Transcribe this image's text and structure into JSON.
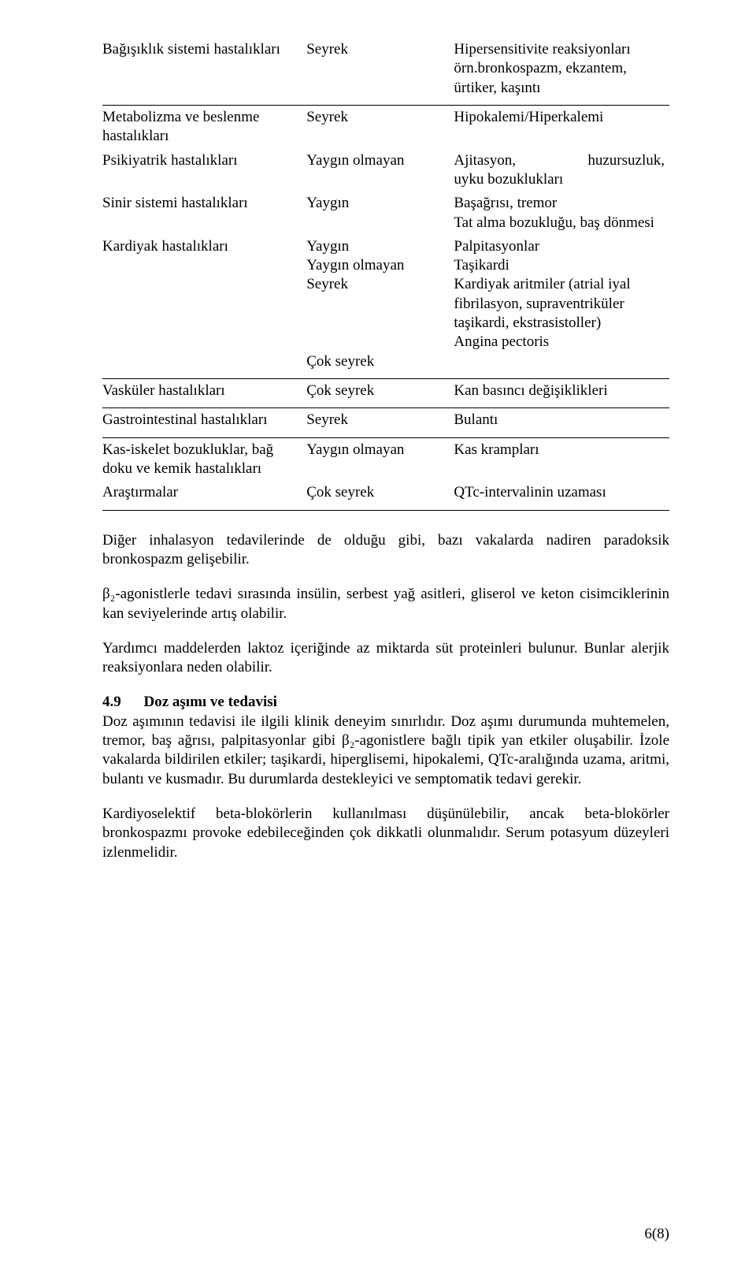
{
  "table": {
    "rows": [
      {
        "a": "Bağışıklık sistemi hastalıkları",
        "b": "Seyrek",
        "c": "Hipersensitivite reaksiyonları örn.bronkospazm, ekzantem, ürtiker, kaşıntı"
      },
      {
        "sep": true
      },
      {
        "a": "Metabolizma ve beslenme hastalıkları",
        "b": "Seyrek",
        "c": "Hipokalemi/Hiperkalemi"
      },
      {
        "a": "Psikiyatrik hastalıkları",
        "b": "Yaygın olmayan",
        "c_just": "Ajitasyon, huzursuzluk, uyku bozuklukları"
      },
      {
        "a": "Sinir sistemi hastalıkları",
        "b": "Yaygın",
        "c": "Başağrısı, tremor\nTat alma bozukluğu, baş dönmesi"
      },
      {
        "a": "Kardiyak hastalıkları",
        "b": "Yaygın\nYaygın olmayan\nSeyrek\n\n\n\nÇok seyrek",
        "c": "Palpitasyonlar\nTaşikardi\nKardiyak aritmiler (atrial iyal fibrilasyon, supraventriküler taşikardi, ekstrasistoller)\nAngina pectoris"
      },
      {
        "sep": true
      },
      {
        "a": "Vasküler hastalıkları",
        "b": "Çok seyrek",
        "c": "Kan basıncı değişiklikleri"
      },
      {
        "sep": true
      },
      {
        "a": "Gastrointestinal hastalıkları",
        "b": "Seyrek",
        "c": "Bulantı"
      },
      {
        "sep": true
      },
      {
        "a": "Kas-iskelet bozukluklar, bağ doku ve kemik hastalıkları",
        "b": "Yaygın olmayan",
        "c": "Kas krampları"
      },
      {
        "a": "Araştırmalar",
        "b": "Çok seyrek",
        "c": "QTc-intervalinin uzaması"
      },
      {
        "sep": true
      }
    ]
  },
  "paragraphs": {
    "p1": "Diğer inhalasyon tedavilerinde de olduğu gibi, bazı vakalarda nadiren paradoksik bronkospazm gelişebilir.",
    "p2": "β₂-agonistlerle tedavi sırasında insülin, serbest yağ asitleri, gliserol ve keton cisimciklerinin kan seviyelerinde artış olabilir.",
    "p3": "Yardımcı maddelerden laktoz içeriğinde az miktarda süt proteinleri bulunur. Bunlar alerjik reaksiyonlara neden olabilir.",
    "sec_num": "4.9",
    "sec_title": "Doz aşımı ve tedavisi",
    "p4": "Doz aşımının tedavisi ile ilgili klinik deneyim sınırlıdır. Doz aşımı durumunda muhtemelen, tremor, baş ağrısı, palpitasyonlar gibi β₂-agonistlere bağlı tipik yan etkiler oluşabilir. İzole vakalarda bildirilen etkiler; taşikardi, hiperglisemi, hipokalemi, QTc-aralığında uzama, aritmi, bulantı ve kusmadır. Bu durumlarda destekleyici ve semptomatik tedavi gerekir.",
    "p5": "Kardiyoselektif beta-blokörlerin kullanılması düşünülebilir, ancak beta-blokörler bronkospazmı provoke edebileceğinden çok dikkatli olunmalıdır. Serum potasyum düzeyleri izlenmelidir."
  },
  "pagenum": "6(8)"
}
